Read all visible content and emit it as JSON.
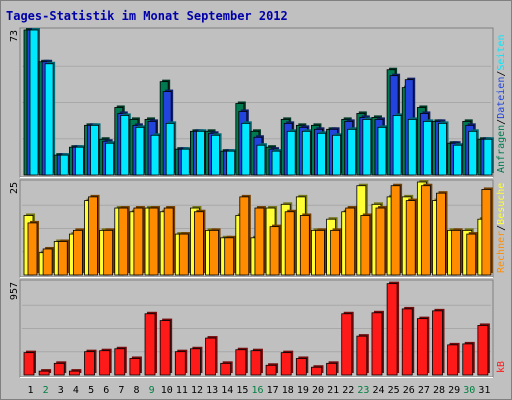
{
  "title": "Tages-Statistik im Monat September 2012",
  "colors": {
    "frame_bg": "#c0c0c0",
    "plot_bg": "#c0c0c0",
    "title": "#0000aa",
    "anfragen": "#007a50",
    "dateien": "#2244dd",
    "seiten": "#00e8ff",
    "besuche": "#ffff33",
    "rechner": "#ff8c00",
    "kb": "#ff1a1a",
    "weekend_label": "#008040",
    "weekday_label": "#000000"
  },
  "chart_data": [
    {
      "type": "bar",
      "title": "",
      "ymax_label": "73",
      "ylim": [
        0,
        73
      ],
      "right_legend": [
        {
          "text": "Anfragen",
          "color": "#007a50"
        },
        {
          "text": "/",
          "color": "#000000"
        },
        {
          "text": "Dateien",
          "color": "#2244dd"
        },
        {
          "text": "/",
          "color": "#000000"
        },
        {
          "text": "Seiten",
          "color": "#00e8ff"
        }
      ],
      "categories": [
        "1",
        "2",
        "3",
        "4",
        "5",
        "6",
        "7",
        "8",
        "9",
        "10",
        "11",
        "12",
        "13",
        "14",
        "15",
        "16",
        "17",
        "18",
        "19",
        "20",
        "21",
        "22",
        "23",
        "24",
        "25",
        "26",
        "27",
        "28",
        "29",
        "30",
        "31"
      ],
      "series": [
        {
          "name": "Anfragen",
          "values": [
            73,
            57,
            10,
            14,
            25,
            18,
            34,
            28,
            28,
            47,
            13,
            22,
            22,
            12,
            36,
            22,
            14,
            28,
            25,
            25,
            23,
            28,
            31,
            29,
            53,
            44,
            34,
            27,
            16,
            27,
            18
          ]
        },
        {
          "name": "Dateien",
          "values": [
            73,
            57,
            10,
            14,
            25,
            17,
            31,
            25,
            27,
            42,
            13,
            22,
            21,
            12,
            32,
            19,
            13,
            26,
            24,
            23,
            23,
            27,
            29,
            28,
            50,
            48,
            31,
            27,
            16,
            25,
            18
          ]
        },
        {
          "name": "Seiten",
          "values": [
            73,
            56,
            10,
            14,
            25,
            16,
            30,
            24,
            20,
            26,
            13,
            22,
            20,
            12,
            26,
            15,
            12,
            22,
            22,
            21,
            20,
            23,
            28,
            24,
            30,
            28,
            27,
            26,
            15,
            22,
            18
          ]
        }
      ]
    },
    {
      "type": "bar",
      "title": "",
      "ymax_label": "25",
      "ylim": [
        0,
        25
      ],
      "right_legend": [
        {
          "text": "Rechner",
          "color": "#ff8c00"
        },
        {
          "text": "/",
          "color": "#000000"
        },
        {
          "text": "Besuche",
          "color": "#ffff33"
        }
      ],
      "categories": [
        "1",
        "2",
        "3",
        "4",
        "5",
        "6",
        "7",
        "8",
        "9",
        "10",
        "11",
        "12",
        "13",
        "14",
        "15",
        "16",
        "17",
        "18",
        "19",
        "20",
        "21",
        "22",
        "23",
        "24",
        "25",
        "26",
        "27",
        "28",
        "29",
        "30",
        "31"
      ],
      "series": [
        {
          "name": "Besuche",
          "values": [
            16,
            6,
            9,
            11,
            20,
            12,
            18,
            17,
            18,
            17,
            11,
            18,
            12,
            10,
            16,
            10,
            18,
            19,
            21,
            12,
            15,
            17,
            24,
            19,
            21,
            21,
            25,
            20,
            12,
            12,
            15
          ]
        },
        {
          "name": "Rechner",
          "values": [
            14,
            7,
            9,
            12,
            21,
            12,
            18,
            18,
            18,
            18,
            11,
            17,
            12,
            10,
            21,
            18,
            13,
            17,
            16,
            12,
            12,
            18,
            16,
            18,
            24,
            20,
            24,
            22,
            12,
            11,
            23
          ]
        }
      ]
    },
    {
      "type": "bar",
      "title": "",
      "ymax_label": "957",
      "ylim": [
        0,
        957
      ],
      "right_legend": [
        {
          "text": "kB",
          "color": "#ff1a1a"
        }
      ],
      "categories": [
        "1",
        "2",
        "3",
        "4",
        "5",
        "6",
        "7",
        "8",
        "9",
        "10",
        "11",
        "12",
        "13",
        "14",
        "15",
        "16",
        "17",
        "18",
        "19",
        "20",
        "21",
        "22",
        "23",
        "24",
        "25",
        "26",
        "27",
        "28",
        "29",
        "30",
        "31"
      ],
      "series": [
        {
          "name": "kB",
          "values": [
            230,
            40,
            120,
            40,
            240,
            250,
            270,
            170,
            630,
            560,
            240,
            270,
            380,
            120,
            260,
            250,
            100,
            230,
            170,
            80,
            120,
            630,
            400,
            640,
            940,
            680,
            580,
            660,
            310,
            320,
            510
          ]
        }
      ]
    }
  ],
  "weekend_days": [
    2,
    9,
    16,
    23,
    30
  ]
}
